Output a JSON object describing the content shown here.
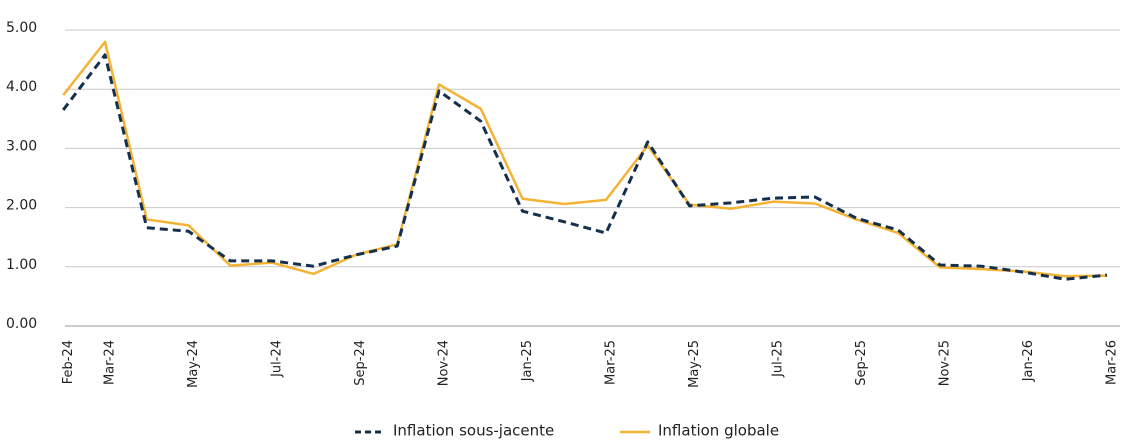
{
  "chart_data": {
    "type": "line",
    "categories": [
      "Feb-24",
      "Mar-24",
      null,
      "May-24",
      null,
      "Jul-24",
      null,
      "Sep-24",
      null,
      "Nov-24",
      null,
      "Jan-25",
      null,
      "Mar-25",
      null,
      "May-25",
      null,
      "Jul-25",
      null,
      "Sep-25",
      null,
      "Nov-25",
      null,
      "Jan-26",
      null,
      "Mar-26"
    ],
    "series": [
      {
        "name": "Inflation sous-jacente",
        "color": "#14304d",
        "dash": true,
        "values": [
          3.65,
          4.58,
          1.66,
          1.6,
          1.1,
          1.1,
          1.01,
          1.2,
          1.35,
          3.97,
          3.46,
          1.94,
          1.76,
          1.57,
          3.11,
          2.03,
          2.08,
          2.16,
          2.18,
          1.82,
          1.62,
          1.03,
          1.01,
          0.91,
          0.79,
          0.86
        ]
      },
      {
        "name": "Inflation globale",
        "color": "#f5b335",
        "dash": false,
        "values": [
          3.9,
          4.8,
          1.8,
          1.7,
          1.02,
          1.07,
          0.88,
          1.2,
          1.38,
          4.08,
          3.67,
          2.15,
          2.06,
          2.13,
          3.05,
          2.05,
          1.98,
          2.1,
          2.07,
          1.8,
          1.57,
          0.99,
          0.96,
          0.92,
          0.84,
          0.85
        ]
      }
    ],
    "ylim": [
      0,
      5
    ],
    "yticks": [
      {
        "value": 0,
        "label": "0.00"
      },
      {
        "value": 1,
        "label": "1.00"
      },
      {
        "value": 2,
        "label": "2.00"
      },
      {
        "value": 3,
        "label": "3.00"
      },
      {
        "value": 4,
        "label": "4.00"
      },
      {
        "value": 5,
        "label": "5.00"
      }
    ],
    "grid": true,
    "legend": "bottom"
  }
}
